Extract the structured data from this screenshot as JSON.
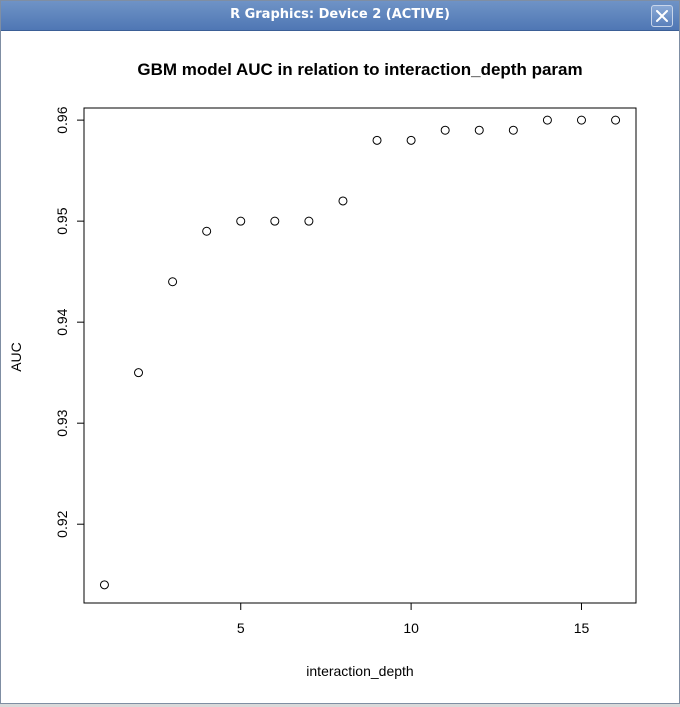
{
  "window": {
    "title": "R Graphics: Device 2 (ACTIVE)"
  },
  "chart_data": {
    "type": "scatter",
    "title": "GBM model AUC in relation to interaction_depth param",
    "xlabel": "interaction_depth",
    "ylabel": "AUC",
    "x": [
      1,
      2,
      3,
      4,
      5,
      6,
      7,
      8,
      9,
      10,
      11,
      12,
      13,
      14,
      15,
      16
    ],
    "y": [
      0.914,
      0.935,
      0.944,
      0.949,
      0.95,
      0.95,
      0.95,
      0.952,
      0.958,
      0.958,
      0.959,
      0.959,
      0.959,
      0.96,
      0.96,
      0.96
    ],
    "xlim": [
      0.4,
      16.6
    ],
    "ylim": [
      0.9122,
      0.9612
    ],
    "xticks": [
      "5",
      "10",
      "15"
    ],
    "yticks": [
      "0.92",
      "0.93",
      "0.94",
      "0.95",
      "0.96"
    ],
    "marker": "open-circle",
    "grid": false,
    "legend": "none"
  }
}
